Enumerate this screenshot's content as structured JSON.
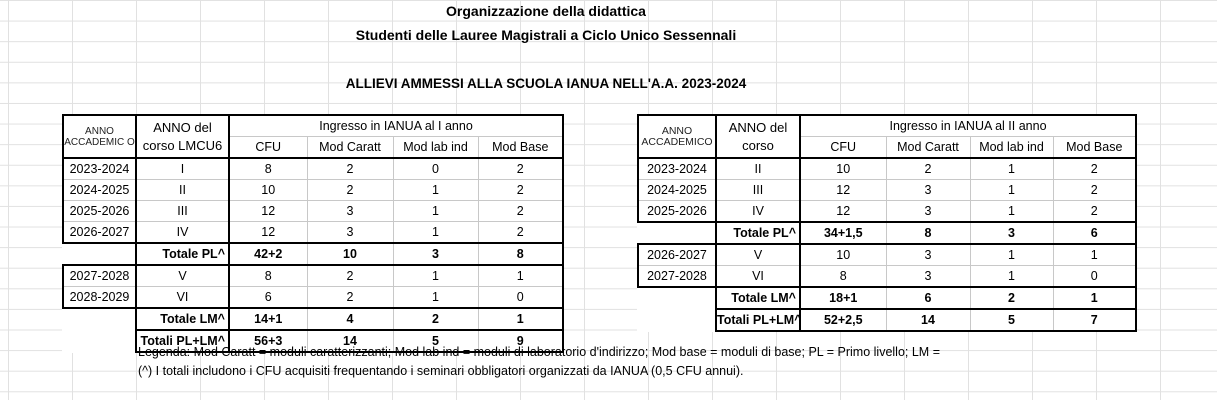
{
  "titles": {
    "main": "Organizzazione della didattica",
    "sub": "Studenti delle Lauree Magistrali a Ciclo Unico Sessennali",
    "section": "ALLIEVI AMMESSI ALLA SCUOLA IANUA NELL'A.A. 2023-2024"
  },
  "left_table": {
    "hdr_year": "ANNO ACCADEMIC O",
    "hdr_course": "ANNO del corso LMCU6",
    "hdr_group": "Ingresso in IANUA al I anno",
    "cols": [
      "CFU",
      "Mod Caratt",
      "Mod lab ind",
      "Mod Base"
    ],
    "rows": [
      {
        "year": "2023-2024",
        "course": "I",
        "cfu": "8",
        "caratt": "2",
        "lab": "0",
        "base": "2"
      },
      {
        "year": "2024-2025",
        "course": "II",
        "cfu": "10",
        "caratt": "2",
        "lab": "1",
        "base": "2"
      },
      {
        "year": "2025-2026",
        "course": "III",
        "cfu": "12",
        "caratt": "3",
        "lab": "1",
        "base": "2"
      },
      {
        "year": "2026-2027",
        "course": "IV",
        "cfu": "12",
        "caratt": "3",
        "lab": "1",
        "base": "2"
      }
    ],
    "total_pl": {
      "label": "Totale PL^",
      "cfu": "42+2",
      "caratt": "10",
      "lab": "3",
      "base": "8"
    },
    "rows2": [
      {
        "year": "2027-2028",
        "course": "V",
        "cfu": "8",
        "caratt": "2",
        "lab": "1",
        "base": "1"
      },
      {
        "year": "2028-2029",
        "course": "VI",
        "cfu": "6",
        "caratt": "2",
        "lab": "1",
        "base": "0"
      }
    ],
    "total_lm": {
      "label": "Totale LM^",
      "cfu": "14+1",
      "caratt": "4",
      "lab": "2",
      "base": "1"
    },
    "total_all": {
      "label": "Totali PL+LM^",
      "cfu": "56+3",
      "caratt": "14",
      "lab": "5",
      "base": "9"
    }
  },
  "right_table": {
    "hdr_year": "ANNO ACCADEMICO",
    "hdr_course": "ANNO del corso",
    "hdr_group": "Ingresso in IANUA al II anno",
    "cols": [
      "CFU",
      "Mod Caratt",
      "Mod lab ind",
      "Mod Base"
    ],
    "rows": [
      {
        "year": "2023-2024",
        "course": "II",
        "cfu": "10",
        "caratt": "2",
        "lab": "1",
        "base": "2"
      },
      {
        "year": "2024-2025",
        "course": "III",
        "cfu": "12",
        "caratt": "3",
        "lab": "1",
        "base": "2"
      },
      {
        "year": "2025-2026",
        "course": "IV",
        "cfu": "12",
        "caratt": "3",
        "lab": "1",
        "base": "2"
      }
    ],
    "total_pl": {
      "label": "Totale PL^",
      "cfu": "34+1,5",
      "caratt": "8",
      "lab": "3",
      "base": "6"
    },
    "rows2": [
      {
        "year": "2026-2027",
        "course": "V",
        "cfu": "10",
        "caratt": "3",
        "lab": "1",
        "base": "1"
      },
      {
        "year": "2027-2028",
        "course": "VI",
        "cfu": "8",
        "caratt": "3",
        "lab": "1",
        "base": "0"
      }
    ],
    "total_lm": {
      "label": "Totale LM^",
      "cfu": "18+1",
      "caratt": "6",
      "lab": "2",
      "base": "1"
    },
    "total_all": {
      "label": "Totali PL+LM^",
      "cfu": "52+2,5",
      "caratt": "14",
      "lab": "5",
      "base": "7"
    }
  },
  "legend": {
    "line1": "Legenda: Mod Caratt = moduli caratterizzanti; Mod lab ind = moduli di laboratorio d'indirizzo; Mod base = moduli di base; PL = Primo livello; LM =",
    "line2": "(^) I totali includono i CFU acquisiti frequentando i seminari obbligatori organizzati da IANUA (0,5 CFU annui)."
  }
}
